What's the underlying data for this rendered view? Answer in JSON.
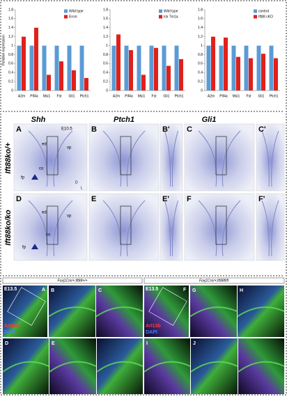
{
  "chart_data": [
    {
      "type": "bar",
      "ylabel": "Relative expression",
      "categories": [
        "A2m",
        "Pif4a",
        "Msi1",
        "Fst",
        "Gli1",
        "Ptch1"
      ],
      "series": [
        {
          "name": "Wild type",
          "color": "#5b9bd5",
          "values": [
            1.0,
            1.0,
            1.0,
            1.0,
            1.0,
            1.0
          ]
        },
        {
          "name": "Ercm",
          "color": "#e0201b",
          "values": [
            1.2,
            1.4,
            0.35,
            0.65,
            0.45,
            0.28
          ]
        }
      ],
      "ylim": [
        0,
        1.8
      ],
      "yticks": [
        0,
        {
          "value": 0.2,
          "label": "0.2"
        },
        {
          "value": 0.4,
          "label": "0.4"
        },
        {
          "value": 0.6,
          "label": "0.6"
        },
        {
          "value": 0.8,
          "label": "0.8"
        },
        1,
        {
          "value": 1.2,
          "label": "1.2"
        },
        {
          "value": 1.4,
          "label": "1.4"
        },
        {
          "value": 1.6,
          "label": "1.6"
        },
        {
          "value": 1.8,
          "label": "1.8"
        }
      ]
    },
    {
      "type": "bar",
      "categories": [
        "A2m",
        "Pif4a",
        "Msi1",
        "Fst",
        "Gli1",
        "Ptch1"
      ],
      "series": [
        {
          "name": "Wild type",
          "color": "#5b9bd5",
          "values": [
            1.0,
            1.0,
            1.0,
            1.0,
            1.0,
            1.0
          ]
        },
        {
          "name": "Ick Tm1a",
          "color": "#e0201b",
          "values": [
            1.25,
            0.9,
            0.35,
            0.95,
            0.55,
            0.7
          ]
        }
      ],
      "ylim": [
        0,
        1.8
      ],
      "yticks": [
        0,
        {
          "value": 0.2,
          "label": "0.2"
        },
        {
          "value": 0.4,
          "label": "0.4"
        },
        {
          "value": 0.6,
          "label": "0.6"
        },
        {
          "value": 0.8,
          "label": "0.8"
        },
        1,
        {
          "value": 1.2,
          "label": "1.2"
        },
        {
          "value": 1.4,
          "label": "1.4"
        },
        {
          "value": 1.6,
          "label": "1.6"
        },
        {
          "value": 1.8,
          "label": "1.8"
        }
      ]
    },
    {
      "type": "bar",
      "categories": [
        "A2m",
        "Pif4a",
        "Msi1",
        "Fst",
        "Gli1",
        "Ptch1"
      ],
      "series": [
        {
          "name": "control",
          "color": "#5b9bd5",
          "values": [
            1.0,
            1.0,
            1.0,
            1.0,
            1.0,
            1.0
          ]
        },
        {
          "name": "Ift88 cKO",
          "color": "#e0201b",
          "values": [
            1.2,
            1.18,
            0.75,
            0.72,
            0.82,
            0.72
          ]
        }
      ],
      "ylim": [
        0,
        1.8
      ],
      "yticks": [
        0,
        {
          "value": 0.2,
          "label": "0.2"
        },
        {
          "value": 0.4,
          "label": "0.4"
        },
        {
          "value": 0.6,
          "label": "0.6"
        },
        {
          "value": 0.8,
          "label": "0.8"
        },
        1,
        {
          "value": 1.2,
          "label": "1.2"
        },
        {
          "value": 1.4,
          "label": "1.4"
        },
        {
          "value": 1.6,
          "label": "1.6"
        },
        {
          "value": 1.8,
          "label": "1.8"
        }
      ]
    }
  ],
  "figure": {
    "genes": [
      "Shh",
      "Ptch1",
      "Gli1"
    ],
    "stage": "E10.5",
    "rows": [
      "Ift88ko/+",
      "Ift88ko/ko"
    ],
    "panels_top": [
      "A",
      "B",
      "B'",
      "C",
      "C'"
    ],
    "panels_mid": [
      "D",
      "E",
      "E'",
      "F",
      "F'"
    ],
    "regions": [
      "ed",
      "vp",
      "co",
      "fp",
      "ed",
      "vp",
      "co",
      "fp"
    ],
    "axes": [
      "D",
      "L"
    ],
    "genotypes": [
      "Foxj1Cre/+;Ift88+/+",
      "Foxj1Cre/+;Ift88fl/fl"
    ],
    "stage2": [
      "E13.5",
      "E13.5"
    ],
    "stains": [
      "Arl13b",
      "DAPI",
      "Arl13b",
      "DAPI"
    ],
    "panels_left": [
      "A",
      "B",
      "C",
      "D",
      "E"
    ],
    "panels_right": [
      "F",
      "G",
      "H",
      "I",
      "J"
    ]
  }
}
